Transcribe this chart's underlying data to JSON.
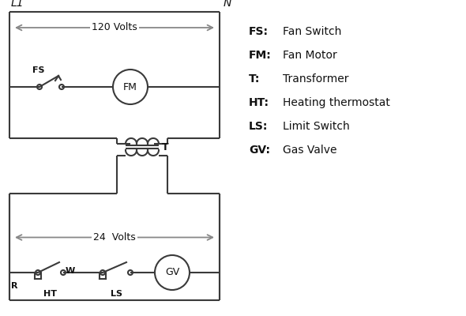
{
  "background_color": "#ffffff",
  "line_color": "#3a3a3a",
  "arrow_color": "#888888",
  "text_color": "#111111",
  "legend": [
    [
      "FS",
      "Fan Switch"
    ],
    [
      "FM",
      "Fan Motor"
    ],
    [
      "T",
      "Transformer"
    ],
    [
      "HT",
      "Heating thermostat"
    ],
    [
      "LS",
      "Limit Switch"
    ],
    [
      "GV",
      "Gas Valve"
    ]
  ],
  "volts_120_label": "120 Volts",
  "volts_24_label": "24  Volts",
  "L1_label": "L1",
  "N_label": "N"
}
